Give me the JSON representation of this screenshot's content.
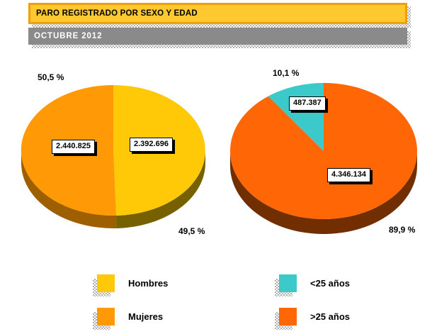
{
  "header": {
    "title": "PARO REGISTRADO POR SEXO Y EDAD",
    "subtitle": "OCTUBRE 2012",
    "title_bg": "#FFC82E",
    "title_border": "#EFA007",
    "subtitle_bg": "#8A8A8A"
  },
  "chart_data": [
    {
      "type": "pie",
      "name": "paro-por-sexo",
      "style": "3d",
      "start_angle_deg": 0,
      "slices": [
        {
          "label": "Hombres",
          "value": 2392696,
          "value_label": "2.392.696",
          "pct": 49.5,
          "pct_label": "49,5 %",
          "color": "#FFC907",
          "side_color": "#766000"
        },
        {
          "label": "Mujeres",
          "value": 2440825,
          "value_label": "2.440.825",
          "pct": 50.5,
          "pct_label": "50,5 %",
          "color": "#FF9905",
          "side_color": "#9D5F00"
        }
      ]
    },
    {
      "type": "pie",
      "name": "paro-por-edad",
      "style": "3d",
      "start_angle_deg": 0,
      "slices": [
        {
          "label": ">25 años",
          "value": 4346134,
          "value_label": "4.346.134",
          "pct": 89.9,
          "pct_label": "89,9 %",
          "color": "#FF6605",
          "side_color": "#712E00"
        },
        {
          "label": "<25 años",
          "value": 487387,
          "value_label": "487.387",
          "pct": 10.1,
          "pct_label": "10,1 %",
          "color": "#3CC9C9",
          "side_color": "#1F8F8F"
        }
      ]
    }
  ],
  "legend": {
    "items": [
      {
        "label": "Hombres",
        "color": "#FFC907"
      },
      {
        "label": "Mujeres",
        "color": "#FF9905"
      },
      {
        "label": "<25 años",
        "color": "#3CC9C9"
      },
      {
        "label": ">25 años",
        "color": "#FF6605"
      }
    ]
  }
}
